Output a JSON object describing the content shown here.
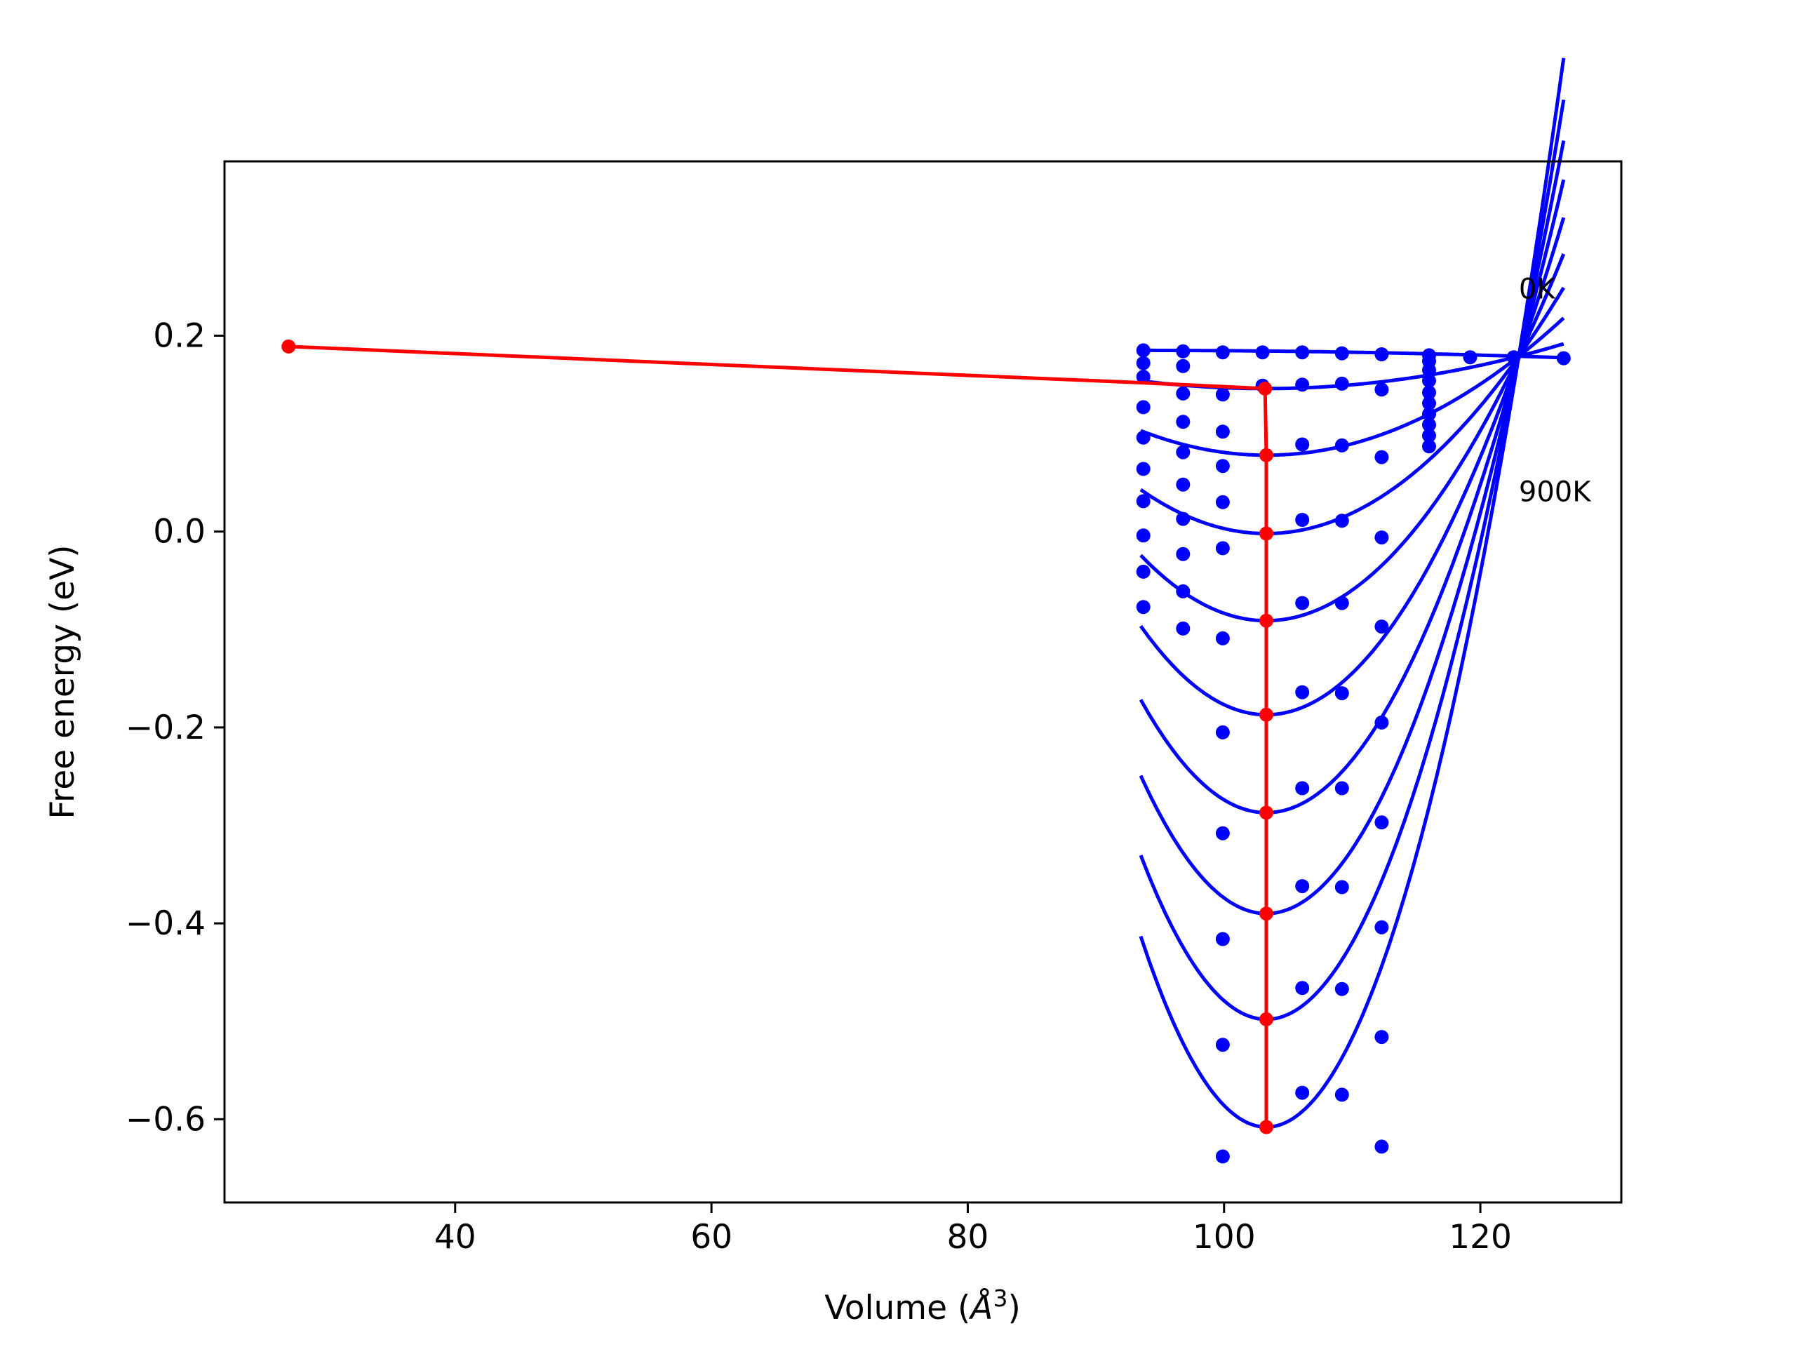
{
  "chart_data": {
    "type": "line",
    "title": "",
    "xlabel_main": "Volume (",
    "xlabel_sym": "Å",
    "xlabel_exp": "3",
    "xlabel_close": ")",
    "ylabel": "Free energy (eV)",
    "xlim": [
      22,
      131
    ],
    "ylim": [
      -0.685,
      0.378
    ],
    "xticks": [
      40,
      60,
      80,
      100,
      120
    ],
    "xtick_labels": [
      "40",
      "60",
      "80",
      "100",
      "120"
    ],
    "yticks": [
      -0.6,
      -0.4,
      -0.2,
      0.0,
      0.2
    ],
    "ytick_labels": [
      "−0.6",
      "−0.4",
      "−0.2",
      "0.0",
      "0.2"
    ],
    "grid": false,
    "colors": {
      "fit": "#0000ff",
      "points": "#0000ff",
      "minimum_path": "#ff0000",
      "axes": "#000000"
    },
    "annotations": [
      {
        "text": "0K",
        "x": 123.0,
        "y": 0.238
      },
      {
        "text": "900K",
        "x": 123.0,
        "y": 0.031
      }
    ],
    "fit_curves": {
      "x_range": [
        93.5,
        126.5
      ],
      "v_pivot": 123.0,
      "f_pivot": 0.179,
      "curves": [
        {
          "v_min": 93.5,
          "f_min": 0.185
        },
        {
          "v_min": 103.2,
          "f_min": 0.146
        },
        {
          "v_min": 103.3,
          "f_min": 0.078
        },
        {
          "v_min": 103.3,
          "f_min": -0.002
        },
        {
          "v_min": 103.3,
          "f_min": -0.091
        },
        {
          "v_min": 103.3,
          "f_min": -0.187
        },
        {
          "v_min": 103.3,
          "f_min": -0.287
        },
        {
          "v_min": 103.3,
          "f_min": -0.39
        },
        {
          "v_min": 103.3,
          "f_min": -0.498
        },
        {
          "v_min": 103.3,
          "f_min": -0.608
        }
      ]
    },
    "points": [
      [
        93.7,
        0.185
      ],
      [
        96.8,
        0.184
      ],
      [
        99.9,
        0.183
      ],
      [
        103.0,
        0.183
      ],
      [
        106.1,
        0.183
      ],
      [
        109.2,
        0.182
      ],
      [
        112.3,
        0.181
      ],
      [
        116.0,
        0.18
      ],
      [
        119.2,
        0.178
      ],
      [
        122.6,
        0.178
      ],
      [
        126.5,
        0.177
      ],
      [
        93.7,
        0.172
      ],
      [
        96.8,
        0.169
      ],
      [
        103.0,
        0.149
      ],
      [
        106.1,
        0.15
      ],
      [
        109.2,
        0.151
      ],
      [
        112.3,
        0.145
      ],
      [
        93.7,
        0.158
      ],
      [
        96.8,
        0.141
      ],
      [
        99.9,
        0.14
      ],
      [
        93.7,
        0.127
      ],
      [
        96.8,
        0.112
      ],
      [
        99.9,
        0.102
      ],
      [
        106.1,
        0.089
      ],
      [
        109.2,
        0.088
      ],
      [
        112.3,
        0.076
      ],
      [
        93.7,
        0.096
      ],
      [
        96.8,
        0.081
      ],
      [
        99.9,
        0.067
      ],
      [
        93.7,
        0.064
      ],
      [
        96.8,
        0.048
      ],
      [
        99.9,
        0.03
      ],
      [
        106.1,
        0.012
      ],
      [
        109.2,
        0.011
      ],
      [
        112.3,
        -0.006
      ],
      [
        93.7,
        0.031
      ],
      [
        96.8,
        0.013
      ],
      [
        99.9,
        -0.017
      ],
      [
        93.7,
        -0.004
      ],
      [
        96.8,
        -0.023
      ],
      [
        106.1,
        -0.073
      ],
      [
        109.2,
        -0.073
      ],
      [
        112.3,
        -0.097
      ],
      [
        93.7,
        -0.041
      ],
      [
        96.8,
        -0.061
      ],
      [
        99.9,
        -0.109
      ],
      [
        93.7,
        -0.077
      ],
      [
        96.8,
        -0.099
      ],
      [
        99.9,
        -0.205
      ],
      [
        106.1,
        -0.164
      ],
      [
        109.2,
        -0.165
      ],
      [
        112.3,
        -0.195
      ],
      [
        99.9,
        -0.308
      ],
      [
        106.1,
        -0.262
      ],
      [
        109.2,
        -0.262
      ],
      [
        112.3,
        -0.297
      ],
      [
        99.9,
        -0.416
      ],
      [
        106.1,
        -0.362
      ],
      [
        109.2,
        -0.363
      ],
      [
        112.3,
        -0.404
      ],
      [
        99.9,
        -0.524
      ],
      [
        106.1,
        -0.466
      ],
      [
        109.2,
        -0.467
      ],
      [
        112.3,
        -0.516
      ],
      [
        99.9,
        -0.638
      ],
      [
        106.1,
        -0.573
      ],
      [
        109.2,
        -0.575
      ],
      [
        112.3,
        -0.628
      ],
      [
        116.0,
        0.174
      ],
      [
        116.0,
        0.165
      ],
      [
        116.0,
        0.154
      ],
      [
        116.0,
        0.142
      ],
      [
        116.0,
        0.131
      ],
      [
        116.0,
        0.12
      ],
      [
        116.0,
        0.109
      ],
      [
        116.0,
        0.098
      ],
      [
        116.0,
        0.087
      ]
    ],
    "minimum_path": {
      "x": [
        27.0,
        93.5,
        103.2,
        103.3,
        103.3,
        103.3,
        103.3,
        103.3,
        103.3,
        103.3,
        103.3
      ],
      "y": [
        0.189,
        0.152,
        0.146,
        0.078,
        -0.002,
        -0.091,
        -0.187,
        -0.287,
        -0.39,
        -0.498,
        -0.608
      ],
      "markers": [
        0,
        2,
        3,
        4,
        5,
        6,
        7,
        8,
        9,
        10
      ]
    }
  }
}
